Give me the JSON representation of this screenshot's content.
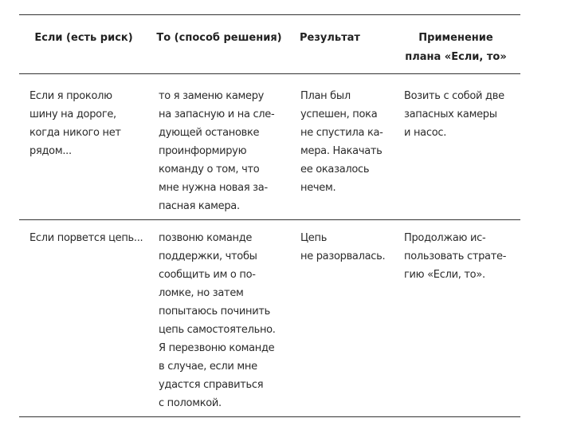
{
  "table": {
    "headers": [
      [
        "Если (есть риск)"
      ],
      [
        "То (способ решения)"
      ],
      [
        "Результат"
      ],
      [
        "Применение",
        "плана «Если, то»"
      ]
    ],
    "rows": [
      [
        [
          "Если я проколю",
          "шину на дороге,",
          "когда никого нет",
          "рядом..."
        ],
        [
          "то я заменю камеру",
          "на запасную и на сле-",
          "дующей остановке",
          "проинформирую",
          "команду о том, что",
          "мне нужна новая за-",
          "пасная камера."
        ],
        [
          "План был",
          "успешен, пока",
          "не спустила ка-",
          "мера. Накачать",
          "ее оказалось",
          "нечем."
        ],
        [
          "Возить с собой две",
          "запасных камеры",
          "и насос."
        ]
      ],
      [
        [
          "Если порвется цепь..."
        ],
        [
          "позвоню команде",
          "поддержки, чтобы",
          "сообщить им о по-",
          "ломке, но затем",
          "попытаюсь починить",
          "цепь самостоятельно.",
          "Я перезвоню команде",
          "в случае, если мне",
          "удастся справиться",
          "с поломкой."
        ],
        [
          "Цепь",
          "не разорвалась."
        ],
        [
          "Продолжаю ис-",
          "пользовать страте-",
          "гию «Если, то»."
        ]
      ]
    ]
  }
}
